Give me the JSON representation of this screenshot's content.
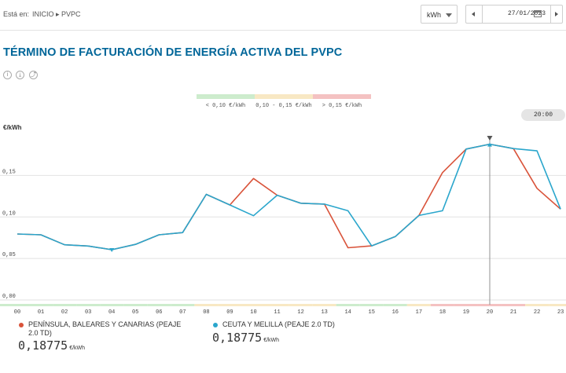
{
  "breadcrumb": {
    "label": "Está en:",
    "path": "INICIO ▸ PVPC"
  },
  "unit_select": {
    "value": "kWh"
  },
  "date": {
    "value": "27/01/2023"
  },
  "title": "TÉRMINO DE FACTURACIÓN DE ENERGÍA ACTIVA DEL PVPC",
  "controls": [
    {
      "name": "info-icon",
      "glyph": "i"
    },
    {
      "name": "download-icon",
      "glyph": "⤓"
    },
    {
      "name": "share-icon",
      "glyph": "⤴"
    }
  ],
  "price_legend": [
    {
      "label": "< 0,10 €/kWh",
      "color": "#cdeccd"
    },
    {
      "label": "0,10 - 0,15 €/kWh",
      "color": "#f8e8c4"
    },
    {
      "label": "> 0,15 €/kWh",
      "color": "#f4c2c2"
    }
  ],
  "selected_time": "20:00",
  "chart_data": {
    "type": "line",
    "ylabel": "€/kWh",
    "ylim": [
      0,
      0.21
    ],
    "yticks": [
      {
        "value": 0.0,
        "label": "0,00"
      },
      {
        "value": 0.05,
        "label": "0,05"
      },
      {
        "value": 0.1,
        "label": "0,10"
      },
      {
        "value": 0.15,
        "label": "0,15"
      }
    ],
    "categories": [
      "00",
      "01",
      "02",
      "03",
      "04",
      "05",
      "06",
      "07",
      "08",
      "09",
      "10",
      "11",
      "12",
      "13",
      "14",
      "15",
      "16",
      "17",
      "18",
      "19",
      "20",
      "21",
      "22",
      "23"
    ],
    "series": [
      {
        "name": "PENÍNSULA, BALEARES Y CANARIAS (PEAJE 2.0 TD)",
        "color": "#d9533a",
        "values": [
          0.0795,
          0.0785,
          0.0665,
          0.065,
          0.0605,
          0.067,
          0.0785,
          0.0812,
          0.1272,
          0.1145,
          0.1463,
          0.1262,
          0.1165,
          0.1155,
          0.0629,
          0.0652,
          0.0763,
          0.1018,
          0.1534,
          0.1818,
          0.1877,
          0.1824,
          0.1345,
          0.1094
        ]
      },
      {
        "name": "CEUTA Y MELILLA (PEAJE 2.0 TD)",
        "color": "#2aa6cc",
        "values": [
          0.0795,
          0.0785,
          0.0665,
          0.065,
          0.0605,
          0.067,
          0.0785,
          0.0812,
          0.1272,
          0.1145,
          0.1015,
          0.1262,
          0.1165,
          0.1155,
          0.1075,
          0.0652,
          0.0763,
          0.1018,
          0.1075,
          0.1818,
          0.1877,
          0.1824,
          0.1796,
          0.1094
        ]
      }
    ],
    "hour_bands": [
      "low",
      "low",
      "low",
      "low",
      "low",
      "low",
      "low",
      "low",
      "mid",
      "mid",
      "mid",
      "mid",
      "mid",
      "mid",
      "low",
      "low",
      "low",
      "mid",
      "high",
      "high",
      "high",
      "high",
      "mid",
      "mid"
    ],
    "selected_index": 20,
    "min_index": 4
  },
  "bottom_legend": [
    {
      "name": "PENÍNSULA, BALEARES Y CANARIAS (PEAJE",
      "name2": "2.0 TD)",
      "value": "0,18775",
      "unit": "€/kWh",
      "color": "#d9533a"
    },
    {
      "name": "CEUTA Y MELILLA (PEAJE 2.0 TD)",
      "name2": "",
      "value": "0,18775",
      "unit": "€/kWh",
      "color": "#2aa6cc"
    }
  ]
}
